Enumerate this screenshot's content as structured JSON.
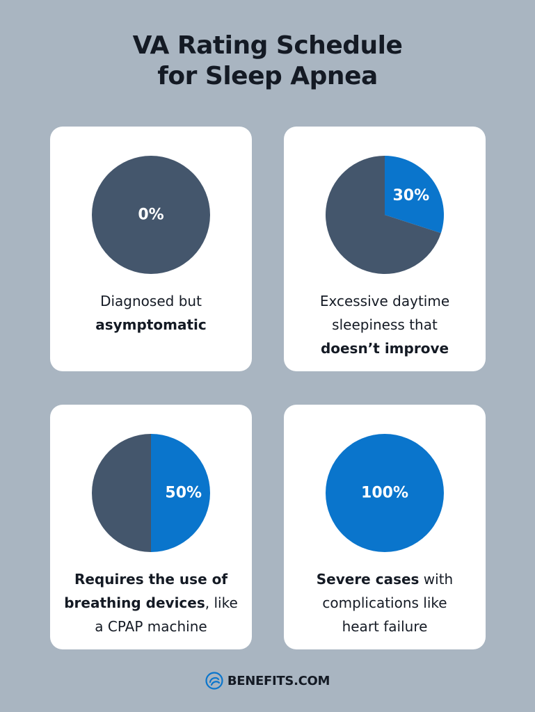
{
  "title": {
    "line1": "VA Rating Schedule",
    "line2": "for Sleep Apnea"
  },
  "colors": {
    "background": "#a9b5c1",
    "card": "#ffffff",
    "slate": "#44566c",
    "blue": "#0a75cc",
    "text": "#141a24"
  },
  "chart_data": [
    {
      "type": "pie",
      "label": "0%",
      "values": [
        0,
        100
      ],
      "slice_colors": [
        "#0a75cc",
        "#44566c"
      ],
      "description": [
        [
          {
            "text": "Diagnosed but",
            "bold": false
          }
        ],
        [
          {
            "text": "asymptomatic",
            "bold": true
          }
        ]
      ]
    },
    {
      "type": "pie",
      "label": "30%",
      "values": [
        30,
        70
      ],
      "slice_colors": [
        "#0a75cc",
        "#44566c"
      ],
      "description": [
        [
          {
            "text": "Excessive daytime",
            "bold": false
          }
        ],
        [
          {
            "text": "sleepiness that",
            "bold": false
          }
        ],
        [
          {
            "text": "doesn’t improve",
            "bold": true
          }
        ]
      ]
    },
    {
      "type": "pie",
      "label": "50%",
      "values": [
        50,
        50
      ],
      "slice_colors": [
        "#0a75cc",
        "#44566c"
      ],
      "description": [
        [
          {
            "text": "Requires the use of",
            "bold": true
          }
        ],
        [
          {
            "text": "breathing devices",
            "bold": true
          },
          {
            "text": ", like",
            "bold": false
          }
        ],
        [
          {
            "text": "a CPAP machine",
            "bold": false
          }
        ]
      ]
    },
    {
      "type": "pie",
      "label": "100%",
      "values": [
        100,
        0
      ],
      "slice_colors": [
        "#0a75cc",
        "#44566c"
      ],
      "description": [
        [
          {
            "text": "Severe cases",
            "bold": true
          },
          {
            "text": " with",
            "bold": false
          }
        ],
        [
          {
            "text": "complications like",
            "bold": false
          }
        ],
        [
          {
            "text": "heart failure",
            "bold": false
          }
        ]
      ]
    }
  ],
  "footer": {
    "brand": "BENEFITS.COM",
    "logo_icon": "benefits-swirl-logo"
  }
}
